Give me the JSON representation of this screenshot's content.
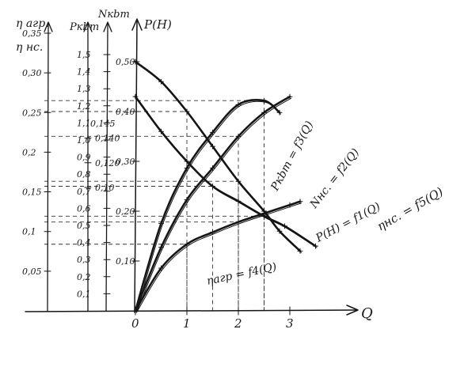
{
  "chart_data": {
    "type": "line",
    "x_axis": {
      "label": "Q",
      "ticks": [
        "0",
        "1",
        "2",
        "3"
      ],
      "range": [
        0,
        3.5
      ]
    },
    "y_axes": [
      {
        "label_top": "η агр.",
        "label_second": "η нс.",
        "ticks": [
          "0,35",
          "0,30",
          "0,25",
          "0,2",
          "0,15",
          "0,1",
          "0,05"
        ],
        "range": [
          0,
          0.35
        ]
      },
      {
        "label": "Pкbт",
        "ticks": [
          "0,140",
          "0,120",
          "0,10"
        ],
        "range": [
          0,
          0.14
        ]
      },
      {
        "label": "Nкbт",
        "ticks": [
          "1,5",
          "1,4",
          "1,3",
          "1,2",
          "1,1",
          "1,0",
          "0,9",
          "0,8",
          "0,7",
          "0,6",
          "0,5",
          "0,4",
          "0,3",
          "0,2",
          "0,1"
        ],
        "range": [
          0,
          1.5
        ]
      },
      {
        "label": "P(H)",
        "ticks": [
          "0,50",
          "0,40",
          "0,30",
          "0,20",
          "0,10"
        ],
        "range": [
          0,
          0.5
        ]
      }
    ],
    "extra_tick_labels": [
      "0,145"
    ],
    "series": [
      {
        "name": "P(H) = f1(Q)",
        "axis": "P(H)",
        "x": [
          0,
          0.5,
          1,
          1.5,
          2,
          2.5,
          2.8,
          3.2
        ],
        "y": [
          0.5,
          0.46,
          0.4,
          0.33,
          0.26,
          0.2,
          0.16,
          0.12
        ]
      },
      {
        "name": "Nнс. = f2(Q)",
        "axis": "Nкbт",
        "x": [
          0,
          0.5,
          1,
          1.5,
          2,
          2.5,
          3,
          3.2
        ],
        "y": [
          0.0,
          0.25,
          0.39,
          0.46,
          0.52,
          0.57,
          0.62,
          0.64
        ]
      },
      {
        "name": "Pкbт = f3(Q)",
        "axis": "P(H)",
        "x": [
          0,
          0.5,
          1,
          1.5,
          2,
          2.5,
          2.9,
          3.5
        ],
        "y": [
          0.43,
          0.36,
          0.3,
          0.25,
          0.22,
          0.19,
          0.17,
          0.13
        ]
      },
      {
        "name": "ηагр = f4(Q)",
        "axis": "η",
        "x": [
          0,
          0.5,
          1,
          1.5,
          2,
          2.5,
          3
        ],
        "y": [
          0.0,
          0.08,
          0.14,
          0.18,
          0.22,
          0.25,
          0.27
        ]
      },
      {
        "name": "ηнс. = f5(Q)",
        "axis": "η",
        "x": [
          0,
          0.5,
          1,
          1.5,
          2,
          2.5,
          2.8
        ],
        "y": [
          0.0,
          0.11,
          0.18,
          0.225,
          0.26,
          0.265,
          0.25
        ]
      }
    ],
    "grid": "dashed reference lines",
    "legend": "labels written beside curves"
  }
}
